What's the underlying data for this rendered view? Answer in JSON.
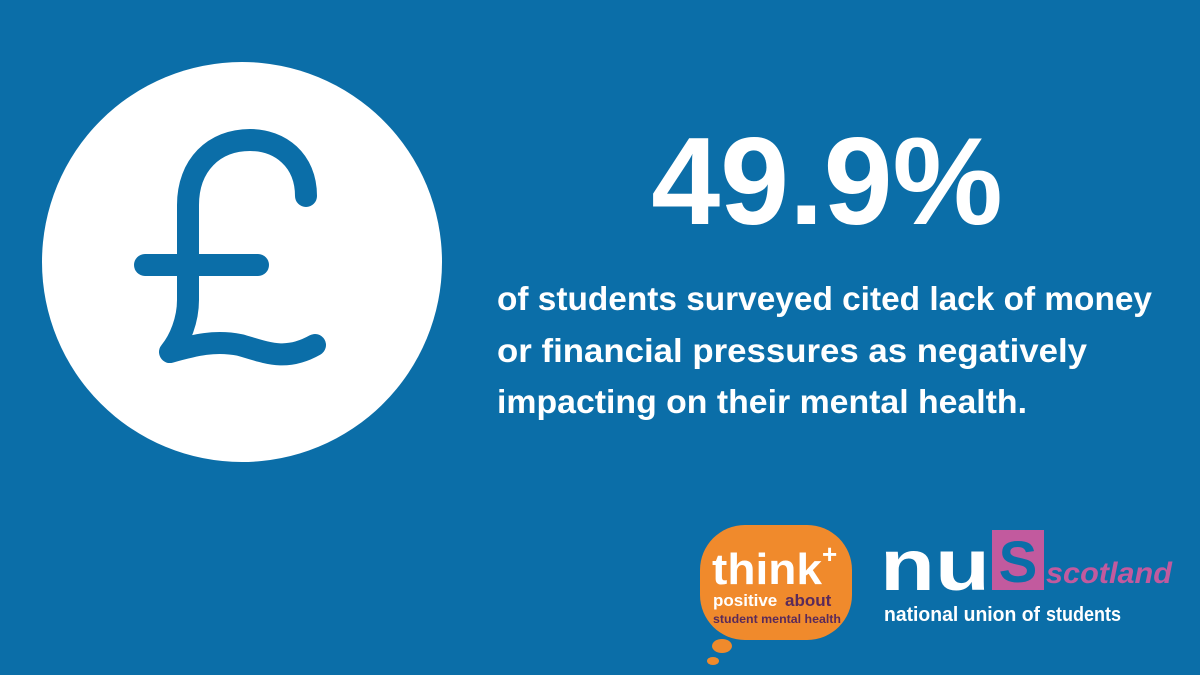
{
  "stat": {
    "value": "49.9%",
    "description": [
      "of students surveyed cited lack of money",
      "or financial pressures as negatively",
      "impacting on their mental health."
    ]
  },
  "logos": {
    "think": {
      "word": "think",
      "plus": "+",
      "positive": "positive",
      "about": "about",
      "tagline": "student mental health"
    },
    "nus": {
      "nu": "nu",
      "s": "S",
      "region": "scotland",
      "tagline_start": "national union of",
      "tagline_end": "students"
    }
  }
}
